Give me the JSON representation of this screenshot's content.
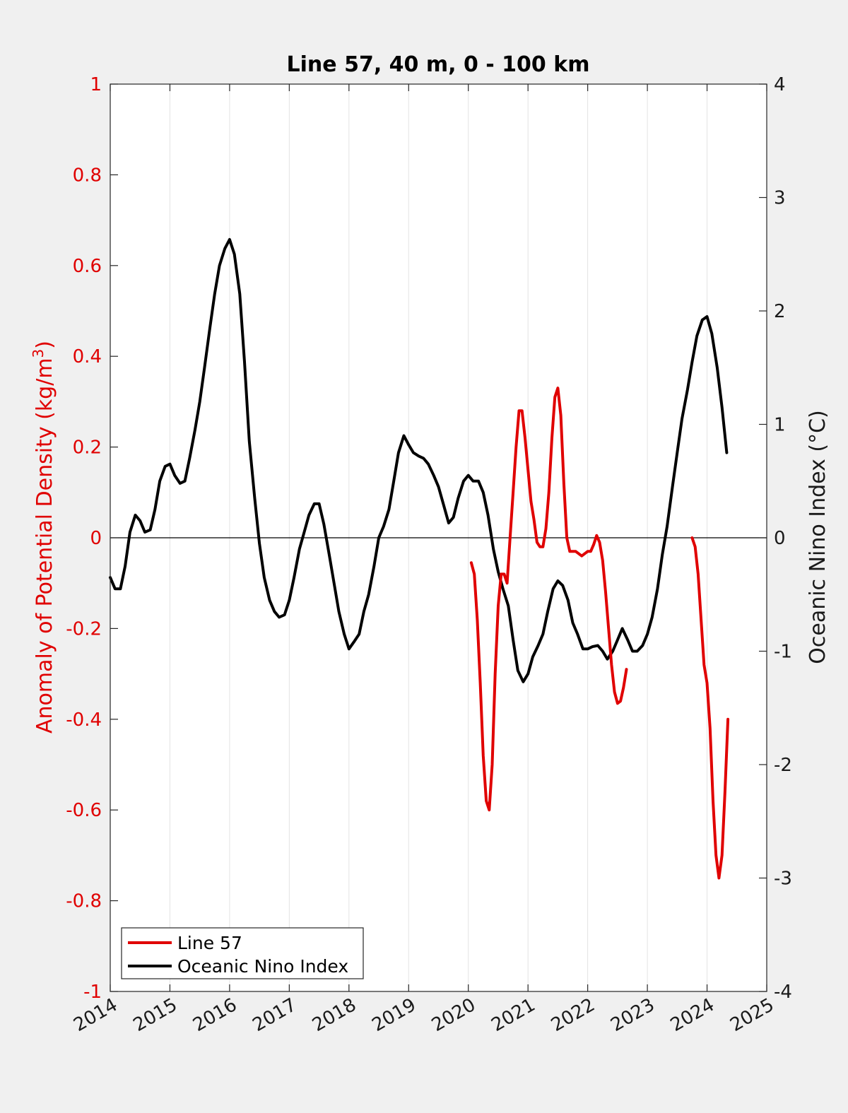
{
  "chart_data": {
    "type": "line",
    "title": "Line 57, 40 m, 0 - 100 km",
    "y_left_label_prefix": "Anomaly of Potential Density (kg/m",
    "y_left_label_sup": "3",
    "y_left_label_suffix": ")",
    "y_right_label": "Oceanic Nino Index (°C)",
    "x_range": [
      2014,
      2025
    ],
    "y_left_range": [
      -1,
      1
    ],
    "y_right_range": [
      -4,
      4
    ],
    "x_ticks": [
      "2014",
      "2015",
      "2016",
      "2017",
      "2018",
      "2019",
      "2020",
      "2021",
      "2022",
      "2023",
      "2024",
      "2025"
    ],
    "y_left_ticks": [
      "1",
      "0.8",
      "0.6",
      "0.4",
      "0.2",
      "0",
      "-0.2",
      "-0.4",
      "-0.6",
      "-0.8",
      "-1"
    ],
    "y_right_ticks": [
      "4",
      "3",
      "2",
      "1",
      "0",
      "-1",
      "-2",
      "-3",
      "-4"
    ],
    "grid": "vertical",
    "zero_line": true,
    "legend_position": "bottom-left",
    "colors": {
      "line57": "#e00000",
      "oni": "#000000"
    },
    "series": [
      {
        "name": "Line 57",
        "axis": "left",
        "color": "#e00000",
        "segments": [
          [
            [
              2020.05,
              -0.055
            ],
            [
              2020.1,
              -0.08
            ],
            [
              2020.15,
              -0.18
            ],
            [
              2020.2,
              -0.32
            ],
            [
              2020.25,
              -0.48
            ],
            [
              2020.3,
              -0.58
            ],
            [
              2020.35,
              -0.6
            ],
            [
              2020.4,
              -0.5
            ],
            [
              2020.45,
              -0.3
            ],
            [
              2020.5,
              -0.15
            ],
            [
              2020.55,
              -0.08
            ],
            [
              2020.6,
              -0.08
            ],
            [
              2020.65,
              -0.1
            ],
            [
              2020.7,
              0.0
            ],
            [
              2020.75,
              0.1
            ],
            [
              2020.8,
              0.2
            ],
            [
              2020.85,
              0.28
            ],
            [
              2020.9,
              0.28
            ],
            [
              2020.95,
              0.22
            ],
            [
              2021.0,
              0.15
            ],
            [
              2021.05,
              0.08
            ],
            [
              2021.1,
              0.04
            ],
            [
              2021.15,
              -0.01
            ],
            [
              2021.2,
              -0.02
            ],
            [
              2021.25,
              -0.02
            ],
            [
              2021.3,
              0.02
            ],
            [
              2021.35,
              0.1
            ],
            [
              2021.4,
              0.22
            ],
            [
              2021.45,
              0.31
            ],
            [
              2021.5,
              0.33
            ],
            [
              2021.55,
              0.27
            ],
            [
              2021.6,
              0.12
            ],
            [
              2021.65,
              0.0
            ],
            [
              2021.7,
              -0.03
            ],
            [
              2021.75,
              -0.03
            ],
            [
              2021.8,
              -0.03
            ],
            [
              2021.9,
              -0.04
            ],
            [
              2022.0,
              -0.03
            ],
            [
              2022.05,
              -0.03
            ],
            [
              2022.1,
              -0.015
            ],
            [
              2022.15,
              0.005
            ],
            [
              2022.2,
              -0.01
            ],
            [
              2022.25,
              -0.05
            ],
            [
              2022.3,
              -0.12
            ],
            [
              2022.35,
              -0.2
            ],
            [
              2022.4,
              -0.28
            ],
            [
              2022.45,
              -0.34
            ],
            [
              2022.5,
              -0.365
            ],
            [
              2022.55,
              -0.36
            ],
            [
              2022.6,
              -0.33
            ],
            [
              2022.65,
              -0.29
            ]
          ],
          [
            [
              2023.75,
              0.0
            ],
            [
              2023.8,
              -0.02
            ],
            [
              2023.85,
              -0.08
            ],
            [
              2023.9,
              -0.18
            ],
            [
              2023.95,
              -0.28
            ],
            [
              2024.0,
              -0.32
            ],
            [
              2024.05,
              -0.42
            ],
            [
              2024.1,
              -0.58
            ],
            [
              2024.15,
              -0.7
            ],
            [
              2024.2,
              -0.75
            ],
            [
              2024.25,
              -0.7
            ],
            [
              2024.3,
              -0.56
            ],
            [
              2024.35,
              -0.4
            ]
          ]
        ]
      },
      {
        "name": "Oceanic Nino Index",
        "axis": "right",
        "color": "#000000",
        "points": [
          [
            2014.0,
            -0.35
          ],
          [
            2014.08,
            -0.45
          ],
          [
            2014.17,
            -0.45
          ],
          [
            2014.25,
            -0.25
          ],
          [
            2014.33,
            0.05
          ],
          [
            2014.42,
            0.2
          ],
          [
            2014.5,
            0.15
          ],
          [
            2014.58,
            0.05
          ],
          [
            2014.67,
            0.07
          ],
          [
            2014.75,
            0.25
          ],
          [
            2014.83,
            0.5
          ],
          [
            2014.92,
            0.63
          ],
          [
            2015.0,
            0.65
          ],
          [
            2015.08,
            0.55
          ],
          [
            2015.17,
            0.48
          ],
          [
            2015.25,
            0.5
          ],
          [
            2015.33,
            0.7
          ],
          [
            2015.42,
            0.95
          ],
          [
            2015.5,
            1.2
          ],
          [
            2015.58,
            1.5
          ],
          [
            2015.67,
            1.85
          ],
          [
            2015.75,
            2.15
          ],
          [
            2015.83,
            2.4
          ],
          [
            2015.92,
            2.55
          ],
          [
            2016.0,
            2.63
          ],
          [
            2016.08,
            2.5
          ],
          [
            2016.17,
            2.15
          ],
          [
            2016.25,
            1.55
          ],
          [
            2016.33,
            0.85
          ],
          [
            2016.42,
            0.35
          ],
          [
            2016.5,
            -0.05
          ],
          [
            2016.58,
            -0.35
          ],
          [
            2016.67,
            -0.55
          ],
          [
            2016.75,
            -0.65
          ],
          [
            2016.83,
            -0.7
          ],
          [
            2016.92,
            -0.68
          ],
          [
            2017.0,
            -0.55
          ],
          [
            2017.08,
            -0.35
          ],
          [
            2017.17,
            -0.1
          ],
          [
            2017.25,
            0.05
          ],
          [
            2017.33,
            0.2
          ],
          [
            2017.42,
            0.3
          ],
          [
            2017.5,
            0.3
          ],
          [
            2017.58,
            0.12
          ],
          [
            2017.67,
            -0.15
          ],
          [
            2017.75,
            -0.4
          ],
          [
            2017.83,
            -0.65
          ],
          [
            2017.92,
            -0.85
          ],
          [
            2018.0,
            -0.98
          ],
          [
            2018.08,
            -0.92
          ],
          [
            2018.17,
            -0.85
          ],
          [
            2018.25,
            -0.65
          ],
          [
            2018.33,
            -0.5
          ],
          [
            2018.42,
            -0.25
          ],
          [
            2018.5,
            0.0
          ],
          [
            2018.58,
            0.1
          ],
          [
            2018.67,
            0.25
          ],
          [
            2018.75,
            0.5
          ],
          [
            2018.83,
            0.75
          ],
          [
            2018.92,
            0.9
          ],
          [
            2019.0,
            0.82
          ],
          [
            2019.08,
            0.75
          ],
          [
            2019.17,
            0.72
          ],
          [
            2019.25,
            0.7
          ],
          [
            2019.33,
            0.65
          ],
          [
            2019.42,
            0.55
          ],
          [
            2019.5,
            0.45
          ],
          [
            2019.58,
            0.3
          ],
          [
            2019.67,
            0.13
          ],
          [
            2019.75,
            0.18
          ],
          [
            2019.83,
            0.35
          ],
          [
            2019.92,
            0.5
          ],
          [
            2020.0,
            0.55
          ],
          [
            2020.08,
            0.5
          ],
          [
            2020.17,
            0.5
          ],
          [
            2020.25,
            0.4
          ],
          [
            2020.33,
            0.2
          ],
          [
            2020.42,
            -0.1
          ],
          [
            2020.5,
            -0.3
          ],
          [
            2020.58,
            -0.45
          ],
          [
            2020.67,
            -0.6
          ],
          [
            2020.75,
            -0.9
          ],
          [
            2020.83,
            -1.17
          ],
          [
            2020.92,
            -1.27
          ],
          [
            2021.0,
            -1.2
          ],
          [
            2021.08,
            -1.05
          ],
          [
            2021.17,
            -0.95
          ],
          [
            2021.25,
            -0.85
          ],
          [
            2021.33,
            -0.65
          ],
          [
            2021.42,
            -0.45
          ],
          [
            2021.5,
            -0.38
          ],
          [
            2021.58,
            -0.42
          ],
          [
            2021.67,
            -0.55
          ],
          [
            2021.75,
            -0.75
          ],
          [
            2021.83,
            -0.85
          ],
          [
            2021.92,
            -0.98
          ],
          [
            2022.0,
            -0.98
          ],
          [
            2022.08,
            -0.96
          ],
          [
            2022.17,
            -0.95
          ],
          [
            2022.25,
            -1.0
          ],
          [
            2022.33,
            -1.07
          ],
          [
            2022.42,
            -1.0
          ],
          [
            2022.5,
            -0.9
          ],
          [
            2022.58,
            -0.8
          ],
          [
            2022.67,
            -0.9
          ],
          [
            2022.75,
            -1.0
          ],
          [
            2022.83,
            -1.0
          ],
          [
            2022.92,
            -0.95
          ],
          [
            2023.0,
            -0.85
          ],
          [
            2023.08,
            -0.7
          ],
          [
            2023.17,
            -0.45
          ],
          [
            2023.25,
            -0.15
          ],
          [
            2023.33,
            0.1
          ],
          [
            2023.42,
            0.45
          ],
          [
            2023.5,
            0.75
          ],
          [
            2023.58,
            1.05
          ],
          [
            2023.67,
            1.3
          ],
          [
            2023.75,
            1.55
          ],
          [
            2023.83,
            1.78
          ],
          [
            2023.92,
            1.92
          ],
          [
            2024.0,
            1.95
          ],
          [
            2024.08,
            1.8
          ],
          [
            2024.17,
            1.5
          ],
          [
            2024.25,
            1.15
          ],
          [
            2024.33,
            0.75
          ]
        ]
      }
    ]
  }
}
